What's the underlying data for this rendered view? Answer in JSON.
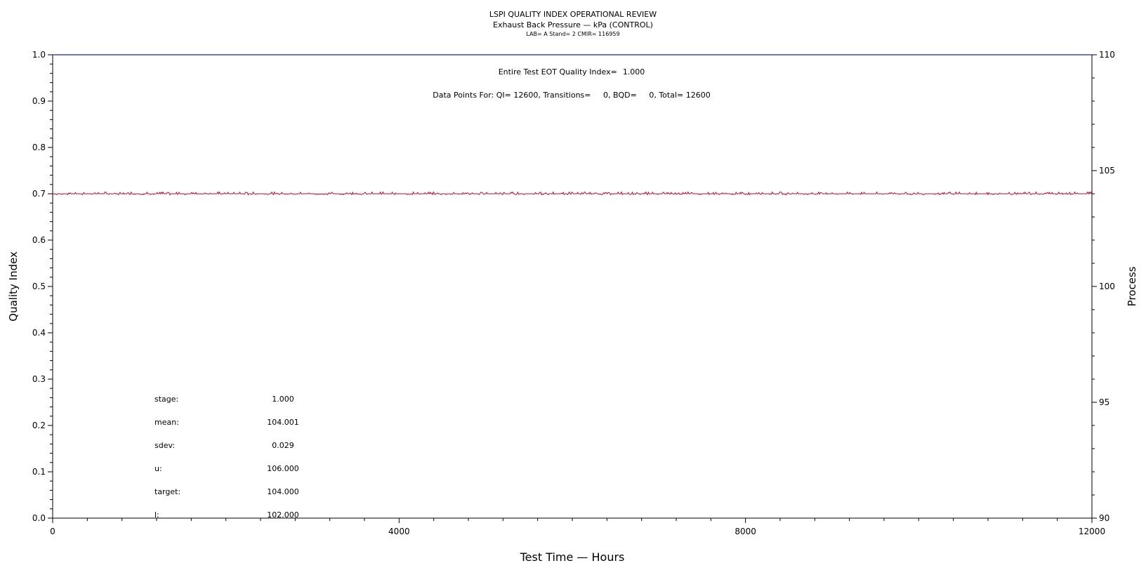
{
  "header": {
    "title": "LSPI QUALITY INDEX OPERATIONAL REVIEW",
    "subtitle": "Exhaust Back Pressure — kPa (CONTROL)",
    "info": "LAB= A Stand= 2 CMIR= 116959"
  },
  "annotations": {
    "eot_label": "Entire Test EOT Quality Index=",
    "eot_value": "1.000",
    "data_points": "Data Points For: QI= 12600, Transitions=     0, BQD=     0, Total= 12600"
  },
  "stats": [
    {
      "label": "stage:",
      "value": "1.000"
    },
    {
      "label": "mean:",
      "value": "104.001"
    },
    {
      "label": "sdev:",
      "value": "0.029"
    },
    {
      "label": "u:",
      "value": "106.000"
    },
    {
      "label": "target:",
      "value": "104.000"
    },
    {
      "label": "l:",
      "value": "102.000"
    }
  ],
  "colors": {
    "quality_index_line": "#1f2a7a",
    "process_line": "#b0102a",
    "axis": "#000000"
  },
  "chart_data": {
    "type": "line",
    "xlabel": "Test Time — Hours",
    "ylabel_left": "Quality Index",
    "ylabel_right": "Process",
    "xlim": [
      0,
      12000
    ],
    "ylim_left": [
      0,
      1
    ],
    "ylim_right": [
      90,
      110
    ],
    "x_ticks": [
      "0",
      "4000",
      "8000",
      "12000"
    ],
    "y_left_ticks": [
      "0.0",
      "0.1",
      "0.2",
      "0.3",
      "0.4",
      "0.5",
      "0.6",
      "0.7",
      "0.8",
      "0.9",
      "1.0"
    ],
    "y_right_ticks": [
      "90",
      "95",
      "100",
      "105",
      "110"
    ],
    "series": [
      {
        "axis": "left",
        "x": [
          0,
          12000
        ],
        "values": [
          1.0,
          1.0
        ]
      },
      {
        "axis": "right",
        "x": [
          0,
          12000
        ],
        "values": [
          104.0,
          104.0
        ],
        "noise_approx": 0.03
      }
    ],
    "grid": false
  }
}
